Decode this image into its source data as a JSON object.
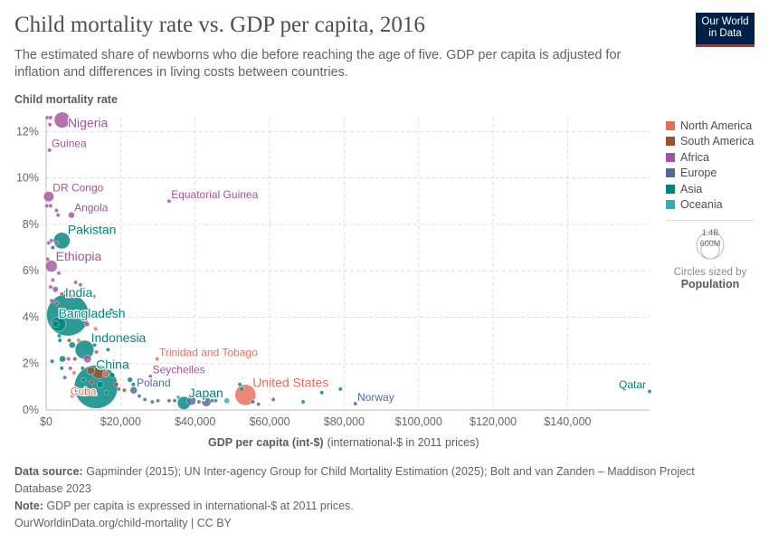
{
  "header": {
    "title": "Child mortality rate vs. GDP per capita, 2016",
    "subtitle": "The estimated share of newborns who die before reaching the age of five. GDP per capita is adjusted for inflation and differences in living costs between countries.",
    "logo_line1": "Our World",
    "logo_line2": "in Data"
  },
  "legend": {
    "items": [
      {
        "label": "North America",
        "color": "#E56E5A"
      },
      {
        "label": "South America",
        "color": "#9A5129"
      },
      {
        "label": "Africa",
        "color": "#A2559C"
      },
      {
        "label": "Europe",
        "color": "#4C6A9C"
      },
      {
        "label": "Asia",
        "color": "#00847E"
      },
      {
        "label": "Oceania",
        "color": "#38AABA"
      }
    ],
    "size_big": "1.4B",
    "size_small": "600M",
    "size_caption": "Circles sized by",
    "size_variable": "Population"
  },
  "chart_data": {
    "type": "scatter",
    "title": "Child mortality rate vs. GDP per capita, 2016",
    "ylabel": "Child mortality rate",
    "xlabel": "GDP per capita (int-$)",
    "xlabel_unit": "(international-$ in 2011 prices)",
    "xlim": [
      0,
      162000
    ],
    "ylim": [
      0,
      12.6
    ],
    "xticks": [
      {
        "v": 0,
        "label": "$0"
      },
      {
        "v": 20000,
        "label": "$20,000"
      },
      {
        "v": 40000,
        "label": "$40,000"
      },
      {
        "v": 60000,
        "label": "$60,000"
      },
      {
        "v": 80000,
        "label": "$80,000"
      },
      {
        "v": 100000,
        "label": "$100,000"
      },
      {
        "v": 120000,
        "label": "$120,000"
      },
      {
        "v": 140000,
        "label": "$140,000"
      }
    ],
    "yticks": [
      {
        "v": 0,
        "label": "0%"
      },
      {
        "v": 2,
        "label": "2%"
      },
      {
        "v": 4,
        "label": "4%"
      },
      {
        "v": 6,
        "label": "6%"
      },
      {
        "v": 8,
        "label": "8%"
      },
      {
        "v": 10,
        "label": "10%"
      },
      {
        "v": 12,
        "label": "12%"
      }
    ],
    "grid": true,
    "legend_position": "right",
    "points": [
      {
        "name": "Nigeria",
        "x": 4300,
        "y": 12.5,
        "pop": 186,
        "c": "Africa"
      },
      {
        "name": "Guinea",
        "x": 900,
        "y": 11.2,
        "pop": 12,
        "c": "Africa"
      },
      {
        "name": "DR Congo",
        "x": 700,
        "y": 9.2,
        "pop": 79,
        "c": "Africa"
      },
      {
        "name": "Equatorial Guinea",
        "x": 33000,
        "y": 9.0,
        "pop": 1.2,
        "c": "Africa"
      },
      {
        "name": "Angola",
        "x": 6800,
        "y": 8.4,
        "pop": 29,
        "c": "Africa"
      },
      {
        "name": "Pakistan",
        "x": 4200,
        "y": 7.3,
        "pop": 200,
        "c": "Asia"
      },
      {
        "name": "Ethiopia",
        "x": 1400,
        "y": 6.2,
        "pop": 103,
        "c": "Africa"
      },
      {
        "name": "India",
        "x": 5800,
        "y": 4.1,
        "pop": 1320,
        "c": "Asia"
      },
      {
        "name": "Bangladesh",
        "x": 3300,
        "y": 3.7,
        "pop": 163,
        "c": "Asia"
      },
      {
        "name": "Indonesia",
        "x": 10300,
        "y": 2.6,
        "pop": 261,
        "c": "Asia"
      },
      {
        "name": "China",
        "x": 13400,
        "y": 1.0,
        "pop": 1400,
        "c": "Asia"
      },
      {
        "name": "Cuba",
        "x": 7000,
        "y": 0.6,
        "pop": 11,
        "c": "North America"
      },
      {
        "name": "Trinidad and Tobago",
        "x": 29800,
        "y": 2.2,
        "pop": 1.4,
        "c": "North America"
      },
      {
        "name": "Seychelles",
        "x": 28000,
        "y": 1.45,
        "pop": 0.1,
        "c": "Africa"
      },
      {
        "name": "United States",
        "x": 53500,
        "y": 0.65,
        "pop": 323,
        "c": "North America"
      },
      {
        "name": "Poland",
        "x": 23500,
        "y": 0.85,
        "pop": 38,
        "c": "Europe"
      },
      {
        "name": "Japan",
        "x": 37000,
        "y": 0.3,
        "pop": 127,
        "c": "Asia"
      },
      {
        "name": "Norway",
        "x": 83000,
        "y": 0.27,
        "pop": 5.2,
        "c": "Europe"
      },
      {
        "name": "Qatar",
        "x": 162000,
        "y": 0.8,
        "pop": 2.6,
        "c": "Asia"
      },
      {
        "x": 300,
        "y": 12.6,
        "pop": 8,
        "c": "Africa"
      },
      {
        "x": 1200,
        "y": 12.6,
        "pop": 5,
        "c": "Africa"
      },
      {
        "x": 1000,
        "y": 12.3,
        "pop": 3,
        "c": "Africa"
      },
      {
        "x": 200,
        "y": 8.8,
        "pop": 6,
        "c": "Africa"
      },
      {
        "x": 1200,
        "y": 8.8,
        "pop": 4,
        "c": "Africa"
      },
      {
        "x": 2800,
        "y": 8.6,
        "pop": 10,
        "c": "Africa"
      },
      {
        "x": 3200,
        "y": 8.4,
        "pop": 6,
        "c": "Africa"
      },
      {
        "x": 700,
        "y": 7.2,
        "pop": 8,
        "c": "Africa"
      },
      {
        "x": 1400,
        "y": 7.3,
        "pop": 5,
        "c": "Africa"
      },
      {
        "x": 2800,
        "y": 7.2,
        "pop": 4,
        "c": "Africa"
      },
      {
        "x": 1800,
        "y": 7.0,
        "pop": 12,
        "c": "Asia"
      },
      {
        "x": 400,
        "y": 6.5,
        "pop": 6,
        "c": "Africa"
      },
      {
        "x": 3400,
        "y": 5.9,
        "pop": 4,
        "c": "Africa"
      },
      {
        "x": 1800,
        "y": 5.6,
        "pop": 5,
        "c": "Africa"
      },
      {
        "x": 7900,
        "y": 5.5,
        "pop": 3,
        "c": "Africa"
      },
      {
        "x": 9200,
        "y": 5.4,
        "pop": 3,
        "c": "Africa"
      },
      {
        "x": 1200,
        "y": 5.3,
        "pop": 6,
        "c": "Africa"
      },
      {
        "x": 2500,
        "y": 5.2,
        "pop": 25,
        "c": "Africa"
      },
      {
        "x": 4200,
        "y": 5.0,
        "pop": 6,
        "c": "Africa"
      },
      {
        "x": 5300,
        "y": 5.1,
        "pop": 4,
        "c": "Africa"
      },
      {
        "x": 1500,
        "y": 4.7,
        "pop": 14,
        "c": "Africa"
      },
      {
        "x": 2900,
        "y": 4.6,
        "pop": 8,
        "c": "Africa"
      },
      {
        "x": 12800,
        "y": 4.9,
        "pop": 1,
        "c": "Africa"
      },
      {
        "x": 17500,
        "y": 4.3,
        "pop": 2,
        "c": "Asia"
      },
      {
        "x": 2600,
        "y": 3.7,
        "pop": 30,
        "c": "Asia"
      },
      {
        "x": 11000,
        "y": 3.7,
        "pop": 18,
        "c": "Africa"
      },
      {
        "x": 13300,
        "y": 3.5,
        "pop": 2,
        "c": "North America"
      },
      {
        "x": 3500,
        "y": 3.2,
        "pop": 5,
        "c": "Asia"
      },
      {
        "x": 3700,
        "y": 3.0,
        "pop": 6,
        "c": "Asia"
      },
      {
        "x": 6200,
        "y": 3.0,
        "pop": 3,
        "c": "South America"
      },
      {
        "x": 8700,
        "y": 3.0,
        "pop": 3,
        "c": "North America"
      },
      {
        "x": 7000,
        "y": 2.8,
        "pop": 30,
        "c": "Asia"
      },
      {
        "x": 13000,
        "y": 2.8,
        "pop": 8,
        "c": "Asia"
      },
      {
        "x": 13500,
        "y": 2.5,
        "pop": 5,
        "c": "Africa"
      },
      {
        "x": 16600,
        "y": 2.6,
        "pop": 3,
        "c": "Asia"
      },
      {
        "x": 1600,
        "y": 2.1,
        "pop": 3,
        "c": "Asia"
      },
      {
        "x": 4400,
        "y": 2.2,
        "pop": 30,
        "c": "Asia"
      },
      {
        "x": 6000,
        "y": 2.2,
        "pop": 3,
        "c": "Africa"
      },
      {
        "x": 7700,
        "y": 2.2,
        "pop": 5,
        "c": "South America"
      },
      {
        "x": 11100,
        "y": 2.2,
        "pop": 45,
        "c": "Africa"
      },
      {
        "x": 4200,
        "y": 1.8,
        "pop": 3,
        "c": "Asia"
      },
      {
        "x": 6500,
        "y": 1.8,
        "pop": 4,
        "c": "Africa"
      },
      {
        "x": 7500,
        "y": 1.6,
        "pop": 3,
        "c": "North America"
      },
      {
        "x": 9800,
        "y": 1.8,
        "pop": 8,
        "c": "Asia"
      },
      {
        "x": 12000,
        "y": 1.7,
        "pop": 45,
        "c": "South America"
      },
      {
        "x": 14000,
        "y": 1.6,
        "pop": 100,
        "c": "South America"
      },
      {
        "x": 16000,
        "y": 1.55,
        "pop": 30,
        "c": "North America"
      },
      {
        "x": 17700,
        "y": 1.5,
        "pop": 20,
        "c": "Asia"
      },
      {
        "x": 5000,
        "y": 1.4,
        "pop": 3,
        "c": "Europe"
      },
      {
        "x": 10000,
        "y": 1.3,
        "pop": 5,
        "c": "Asia"
      },
      {
        "x": 12200,
        "y": 1.2,
        "pop": 4,
        "c": "South America"
      },
      {
        "x": 14500,
        "y": 1.1,
        "pop": 30,
        "c": "Asia"
      },
      {
        "x": 18800,
        "y": 1.1,
        "pop": 15,
        "c": "South America"
      },
      {
        "x": 22500,
        "y": 1.3,
        "pop": 20,
        "c": "Asia"
      },
      {
        "x": 23400,
        "y": 1.1,
        "pop": 3,
        "c": "Asia"
      },
      {
        "x": 19500,
        "y": 0.9,
        "pop": 3,
        "c": "Europe"
      },
      {
        "x": 21000,
        "y": 0.85,
        "pop": 2,
        "c": "South America"
      },
      {
        "x": 16200,
        "y": 0.75,
        "pop": 4,
        "c": "Asia"
      },
      {
        "x": 25000,
        "y": 0.6,
        "pop": 8,
        "c": "Europe"
      },
      {
        "x": 26500,
        "y": 0.45,
        "pop": 10,
        "c": "Europe"
      },
      {
        "x": 28500,
        "y": 0.35,
        "pop": 5,
        "c": "Europe"
      },
      {
        "x": 30000,
        "y": 0.4,
        "pop": 3,
        "c": "Europe"
      },
      {
        "x": 33000,
        "y": 0.4,
        "pop": 10,
        "c": "Europe"
      },
      {
        "x": 34500,
        "y": 0.4,
        "pop": 10,
        "c": "Europe"
      },
      {
        "x": 35500,
        "y": 0.55,
        "pop": 3,
        "c": "Oceania"
      },
      {
        "x": 39000,
        "y": 0.4,
        "pop": 60,
        "c": "Europe"
      },
      {
        "x": 41000,
        "y": 0.35,
        "pop": 4,
        "c": "Europe"
      },
      {
        "x": 43000,
        "y": 0.35,
        "pop": 65,
        "c": "Europe"
      },
      {
        "x": 44500,
        "y": 0.4,
        "pop": 10,
        "c": "Europe"
      },
      {
        "x": 45500,
        "y": 0.4,
        "pop": 8,
        "c": "Europe"
      },
      {
        "x": 48500,
        "y": 0.4,
        "pop": 24,
        "c": "Oceania"
      },
      {
        "x": 52000,
        "y": 1.1,
        "pop": 4,
        "c": "Asia"
      },
      {
        "x": 52500,
        "y": 0.9,
        "pop": 6,
        "c": "Asia"
      },
      {
        "x": 55500,
        "y": 0.35,
        "pop": 5,
        "c": "Europe"
      },
      {
        "x": 57000,
        "y": 0.25,
        "pop": 4,
        "c": "Europe"
      },
      {
        "x": 61000,
        "y": 0.45,
        "pop": 4,
        "c": "Europe"
      },
      {
        "x": 69000,
        "y": 0.35,
        "pop": 4,
        "c": "Asia"
      },
      {
        "x": 74000,
        "y": 0.75,
        "pop": 4,
        "c": "Asia"
      },
      {
        "x": 79000,
        "y": 0.9,
        "pop": 3,
        "c": "Asia"
      }
    ]
  },
  "footer": {
    "source_label": "Data source:",
    "source": "Gapminder (2015); UN Inter-agency Group for Child Mortality Estimation (2025); Bolt and van Zanden – Maddison Project Database 2023",
    "note_label": "Note:",
    "note": "GDP per capita is expressed in international-$ at 2011 prices.",
    "link": "OurWorldinData.org/child-mortality | CC BY"
  }
}
